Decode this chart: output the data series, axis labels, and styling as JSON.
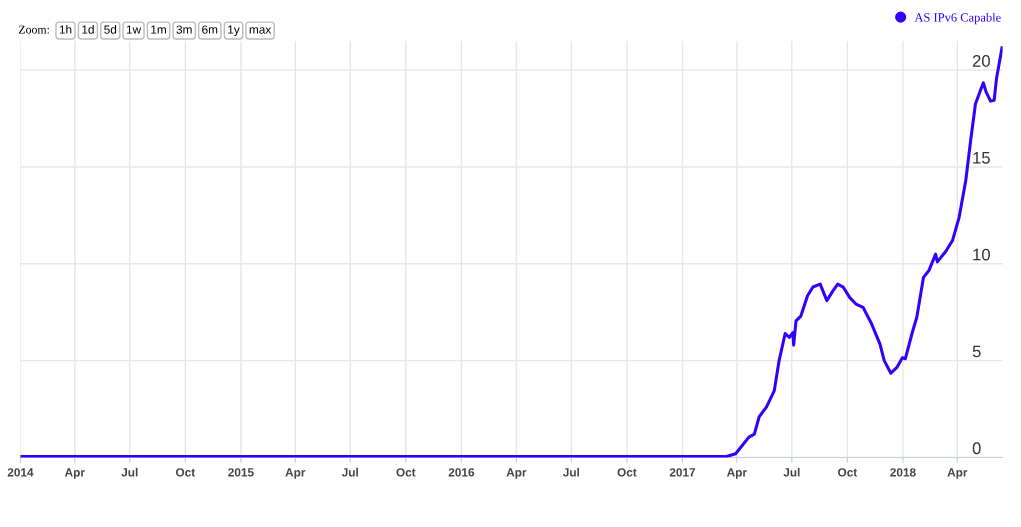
{
  "chart_data": {
    "type": "line",
    "legend": "top right",
    "grid": true,
    "marker": "none",
    "line_style": "solid",
    "annotations": [
      "Zoom:",
      "1h",
      "1d",
      "5d",
      "1w",
      "1m",
      "3m",
      "6m",
      "1y",
      "max"
    ],
    "xlim": [
      "2014-01-01",
      "2018-06-15"
    ],
    "xticks": [
      {
        "value": "2014-01-01",
        "label": "2014"
      },
      {
        "value": "2014-04-01",
        "label": "Apr"
      },
      {
        "value": "2014-07-01",
        "label": "Jul"
      },
      {
        "value": "2014-10-01",
        "label": "Oct"
      },
      {
        "value": "2015-01-01",
        "label": "2015"
      },
      {
        "value": "2015-04-01",
        "label": "Apr"
      },
      {
        "value": "2015-07-01",
        "label": "Jul"
      },
      {
        "value": "2015-10-01",
        "label": "Oct"
      },
      {
        "value": "2016-01-01",
        "label": "2016"
      },
      {
        "value": "2016-04-01",
        "label": "Apr"
      },
      {
        "value": "2016-07-01",
        "label": "Jul"
      },
      {
        "value": "2016-10-01",
        "label": "Oct"
      },
      {
        "value": "2017-01-01",
        "label": "2017"
      },
      {
        "value": "2017-04-01",
        "label": "Apr"
      },
      {
        "value": "2017-07-01",
        "label": "Jul"
      },
      {
        "value": "2017-10-01",
        "label": "Oct"
      },
      {
        "value": "2018-01-01",
        "label": "2018"
      },
      {
        "value": "2018-04-01",
        "label": "Apr"
      }
    ],
    "ylim": [
      0,
      21.5
    ],
    "yticks": [
      0,
      5,
      10,
      15,
      20
    ],
    "series": [
      {
        "name": "AS IPv6 Capable",
        "color": "#3300ff",
        "x": [
          "2014-01-01",
          "2014-07-01",
          "2015-01-01",
          "2015-07-01",
          "2016-01-01",
          "2016-07-01",
          "2017-01-01",
          "2017-03-15",
          "2017-03-30",
          "2017-04-21",
          "2017-04-30",
          "2017-05-08",
          "2017-05-20",
          "2017-06-02",
          "2017-06-10",
          "2017-06-20",
          "2017-06-27",
          "2017-07-03",
          "2017-07-04",
          "2017-07-08",
          "2017-07-16",
          "2017-07-27",
          "2017-08-05",
          "2017-08-17",
          "2017-08-28",
          "2017-09-07",
          "2017-09-15",
          "2017-09-24",
          "2017-10-05",
          "2017-10-16",
          "2017-10-27",
          "2017-11-10",
          "2017-11-24",
          "2017-12-01",
          "2017-12-12",
          "2017-12-22",
          "2017-12-31",
          "2018-01-05",
          "2018-01-16",
          "2018-01-24",
          "2018-02-04",
          "2018-02-13",
          "2018-02-24",
          "2018-02-27",
          "2018-03-13",
          "2018-03-24",
          "2018-04-04",
          "2018-04-15",
          "2018-04-23",
          "2018-05-01",
          "2018-05-08",
          "2018-05-14",
          "2018-05-19",
          "2018-05-26",
          "2018-06-01",
          "2018-06-05",
          "2018-06-14"
        ],
        "values": [
          0.05,
          0.05,
          0.05,
          0.05,
          0.05,
          0.05,
          0.05,
          0.05,
          0.19,
          1.05,
          1.2,
          2.1,
          2.6,
          3.45,
          5.0,
          6.4,
          6.2,
          6.45,
          5.8,
          7.05,
          7.3,
          8.35,
          8.8,
          8.95,
          8.1,
          8.6,
          8.95,
          8.8,
          8.25,
          7.9,
          7.75,
          6.9,
          5.85,
          5.0,
          4.35,
          4.65,
          5.15,
          5.1,
          6.4,
          7.25,
          9.3,
          9.65,
          10.5,
          10.1,
          10.65,
          11.2,
          12.4,
          14.3,
          16.35,
          18.25,
          18.85,
          19.35,
          18.85,
          18.4,
          18.45,
          19.6,
          21.15
        ]
      }
    ]
  }
}
